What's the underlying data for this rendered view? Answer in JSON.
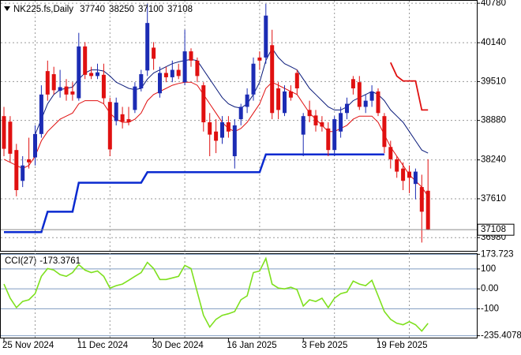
{
  "header": {
    "symbol": "NK225.fs,Daily"
  },
  "chart_data": [
    {
      "type": "candlestick",
      "categories": [
        "25 Nov 2024",
        null,
        null,
        null,
        null,
        null,
        null,
        null,
        null,
        null,
        null,
        null,
        "11 Dec 2024",
        null,
        null,
        null,
        null,
        null,
        null,
        null,
        null,
        null,
        null,
        null,
        "30 Dec 2024",
        null,
        null,
        null,
        null,
        null,
        null,
        null,
        null,
        null,
        null,
        null,
        "16 Jan 2025",
        null,
        null,
        null,
        null,
        null,
        null,
        null,
        null,
        null,
        null,
        null,
        "3 Feb 2025",
        null,
        null,
        null,
        null,
        null,
        null,
        null,
        null,
        null,
        null,
        null,
        "19 Feb 2025",
        null,
        null,
        null,
        null,
        null,
        null,
        null,
        null
      ],
      "open": [
        38950,
        38860,
        38400,
        37900,
        38250,
        38280,
        38660,
        39680,
        39630,
        39360,
        39430,
        39350,
        39240,
        40080,
        39650,
        39600,
        39620,
        39180,
        38870,
        38980,
        38900,
        39050,
        39400,
        39690,
        40060,
        39320,
        39650,
        39580,
        39700,
        39500,
        40000,
        39850,
        39450,
        38850,
        38700,
        38600,
        38850,
        38300,
        38900,
        39100,
        39300,
        39900,
        39900,
        40100,
        39400,
        39000,
        39350,
        39650,
        38650,
        39050,
        38960,
        38850,
        38750,
        38400,
        38700,
        39000,
        39550,
        39500,
        39100,
        39200,
        39350,
        38950,
        38450,
        38250,
        38100,
        38050,
        37850,
        37800,
        37740
      ],
      "high": [
        39100,
        38950,
        38500,
        38300,
        38600,
        38800,
        39450,
        39850,
        39750,
        39700,
        39550,
        39500,
        40300,
        40150,
        39750,
        39800,
        39800,
        39250,
        39250,
        39100,
        39100,
        39500,
        39700,
        40770,
        40150,
        39750,
        39750,
        39850,
        39800,
        40350,
        40050,
        39900,
        39500,
        39000,
        38900,
        38950,
        38950,
        38900,
        39150,
        39400,
        39900,
        40000,
        40770,
        40350,
        39500,
        39450,
        39450,
        39700,
        39000,
        39200,
        39050,
        38950,
        38850,
        38950,
        39100,
        39250,
        39600,
        39600,
        39300,
        39450,
        39400,
        39000,
        38550,
        38300,
        38200,
        38150,
        38100,
        38000,
        38250
      ],
      "low": [
        38300,
        38200,
        37650,
        37800,
        38100,
        38150,
        38600,
        39200,
        39300,
        39250,
        39200,
        39200,
        39200,
        39550,
        39550,
        39550,
        39150,
        38300,
        38800,
        38750,
        38800,
        39000,
        39350,
        39600,
        39700,
        39250,
        39500,
        39500,
        39550,
        39450,
        39750,
        39500,
        38700,
        38300,
        38350,
        38500,
        38600,
        38100,
        38800,
        39000,
        39200,
        39700,
        39800,
        38900,
        38900,
        38950,
        39200,
        39300,
        38300,
        38850,
        38700,
        38700,
        38300,
        38300,
        38600,
        38900,
        39300,
        39050,
        39000,
        39100,
        38950,
        38350,
        38100,
        37950,
        37750,
        37700,
        37600,
        36900,
        37100
      ],
      "close": [
        38420,
        38340,
        37750,
        38150,
        38200,
        38660,
        39300,
        39300,
        39370,
        39420,
        39300,
        39300,
        40080,
        39620,
        39600,
        39660,
        39240,
        38410,
        39170,
        38860,
        38850,
        39430,
        39630,
        40460,
        39880,
        39650,
        39580,
        39700,
        39600,
        40000,
        39850,
        39600,
        38850,
        38650,
        38550,
        38850,
        38700,
        38800,
        39100,
        39300,
        39800,
        39850,
        40580,
        39000,
        39050,
        39350,
        39250,
        39400,
        38950,
        38950,
        38800,
        38780,
        38400,
        38900,
        39000,
        39150,
        39400,
        39100,
        39200,
        39350,
        39000,
        38450,
        38250,
        38050,
        37900,
        37950,
        38050,
        37400,
        37108
      ],
      "up_color": "#1c2cb4",
      "down_color": "#e01010",
      "lines": [
        {
          "color": "#0a1a7a",
          "values": [
            null,
            null,
            null,
            null,
            null,
            38650,
            38900,
            39150,
            39300,
            39380,
            39400,
            39420,
            39550,
            39650,
            39700,
            39700,
            39680,
            39600,
            39500,
            39450,
            39400,
            39380,
            39400,
            39550,
            39650,
            39700,
            39750,
            39800,
            39830,
            39850,
            39870,
            39850,
            39700,
            39550,
            39400,
            39250,
            39150,
            39100,
            39080,
            39150,
            39300,
            39500,
            39850,
            40050,
            39900,
            39800,
            39750,
            39700,
            39550,
            39400,
            39300,
            39200,
            39100,
            39050,
            39050,
            39100,
            39200,
            39250,
            39300,
            39350,
            39300,
            39200,
            39050,
            38950,
            38850,
            38700,
            38550,
            38400,
            38350
          ]
        },
        {
          "color": "#e01010",
          "values": [
            38250,
            38200,
            38150,
            38100,
            38150,
            38300,
            38550,
            38700,
            38800,
            38900,
            38950,
            39000,
            39150,
            39200,
            39200,
            39200,
            39150,
            39000,
            38900,
            38850,
            38850,
            38900,
            39000,
            39200,
            39300,
            39350,
            39400,
            39450,
            39480,
            39500,
            39500,
            39450,
            39300,
            39150,
            39000,
            38850,
            38750,
            38700,
            38750,
            38850,
            39000,
            39150,
            39400,
            39500,
            39450,
            39400,
            39350,
            39300,
            39150,
            39000,
            38900,
            38800,
            38700,
            38700,
            38750,
            38800,
            38900,
            38950,
            38950,
            38950,
            38850,
            38650,
            38450,
            38300,
            38150,
            38000,
            37900,
            37800,
            37650
          ]
        },
        {
          "color": "#0a2ad0",
          "values": [
            37070,
            37070,
            37070,
            37070,
            37070,
            37070,
            37070,
            37400,
            37400,
            37400,
            37400,
            37400,
            37870,
            37870,
            37870,
            37870,
            37870,
            37870,
            37870,
            37870,
            37870,
            37870,
            37870,
            38040,
            38040,
            38040,
            38040,
            38040,
            38040,
            38040,
            38040,
            38040,
            38040,
            38040,
            38040,
            38040,
            38040,
            38040,
            38040,
            38040,
            38040,
            38040,
            38330,
            38330,
            38330,
            38330,
            38330,
            38330,
            38330,
            38330,
            38330,
            38330,
            38330,
            38330,
            38330,
            38330,
            38330,
            38330,
            38330,
            38330,
            38330,
            38330,
            null,
            null,
            null,
            null,
            null,
            null,
            null
          ]
        },
        {
          "color": "#e01010",
          "values": [
            null,
            null,
            null,
            null,
            null,
            null,
            null,
            null,
            null,
            null,
            null,
            null,
            null,
            null,
            null,
            null,
            null,
            null,
            null,
            null,
            null,
            null,
            null,
            null,
            null,
            null,
            null,
            null,
            null,
            null,
            null,
            null,
            null,
            null,
            null,
            null,
            null,
            null,
            null,
            null,
            null,
            null,
            null,
            null,
            null,
            null,
            null,
            null,
            null,
            null,
            null,
            null,
            null,
            null,
            null,
            null,
            null,
            null,
            null,
            null,
            null,
            null,
            39820,
            39600,
            39520,
            39520,
            39520,
            39050,
            39050
          ]
        }
      ],
      "ylim": [
        36765,
        40820
      ],
      "yticks": [
        40780,
        40140,
        39510,
        38880,
        38240,
        37610,
        36980
      ],
      "grid": true
    },
    {
      "type": "line",
      "series": [
        {
          "name": "CCI(27)",
          "color": "#7ee01e",
          "values": [
            24,
            -47,
            -94,
            -63,
            -55,
            -24,
            63,
            102,
            94,
            71,
            63,
            82,
            122,
            94,
            82,
            90,
            63,
            4,
            16,
            24,
            43,
            63,
            82,
            133,
            102,
            47,
            47,
            55,
            63,
            118,
            102,
            -16,
            -133,
            -192,
            -153,
            -133,
            -125,
            -114,
            -55,
            -35,
            82,
            90,
            153,
            24,
            4,
            0,
            8,
            -4,
            -86,
            -55,
            -63,
            -47,
            -94,
            -47,
            -24,
            -16,
            39,
            24,
            16,
            43,
            -35,
            -114,
            -153,
            -173,
            -180,
            -165,
            -180,
            -212,
            -173.3761
          ]
        }
      ],
      "ylim": [
        -245,
        175
      ],
      "yticks": [
        173.723,
        100,
        {
          "value": 0,
          "label": "0.00"
        },
        -100,
        -235.4078
      ]
    }
  ]
}
